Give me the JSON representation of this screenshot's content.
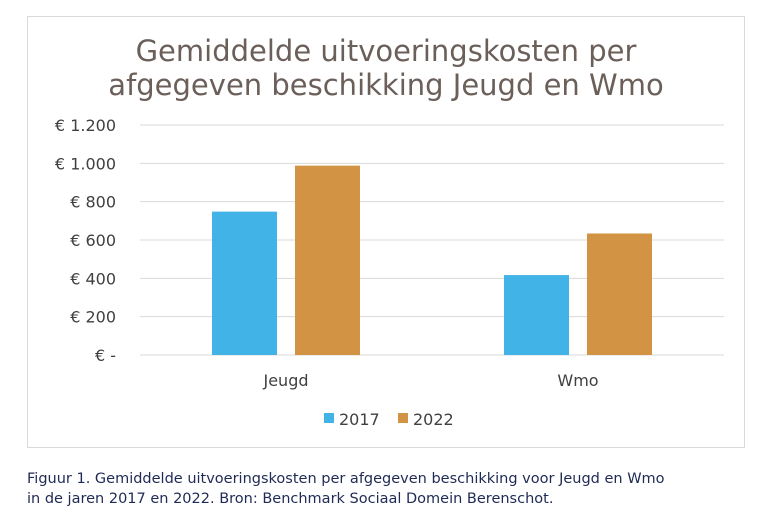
{
  "chart_data": {
    "type": "bar",
    "title_lines": [
      "Gemiddelde uitvoeringskosten per",
      "afgegeven beschikking Jeugd en Wmo"
    ],
    "categories": [
      "Jeugd",
      "Wmo"
    ],
    "series": [
      {
        "name": "2017",
        "values": [
          748,
          417
        ],
        "color": "#41b3e6"
      },
      {
        "name": "2022",
        "values": [
          988,
          634
        ],
        "color": "#d29444"
      }
    ],
    "ylim": [
      0,
      1200
    ],
    "yticks": [
      0,
      200,
      400,
      600,
      800,
      1000,
      1200
    ],
    "ytick_labels": [
      "€ -",
      "€ 200",
      "€ 400",
      "€ 600",
      "€ 800",
      "€ 1.000",
      "€ 1.200"
    ],
    "grid": true,
    "legend_position": "bottom",
    "xlabel": "",
    "ylabel": ""
  },
  "caption": {
    "line1": "Figuur 1. Gemiddelde uitvoeringskosten per afgegeven beschikking voor Jeugd en Wmo",
    "line2": "in de jaren 2017 en 2022. Bron: Benchmark Sociaal Domein Berenschot."
  },
  "colors": {
    "gridline": "#d9d9d9",
    "frame": "#d9d9d9",
    "title": "#6b5f5a",
    "caption": "#1f2a55"
  }
}
